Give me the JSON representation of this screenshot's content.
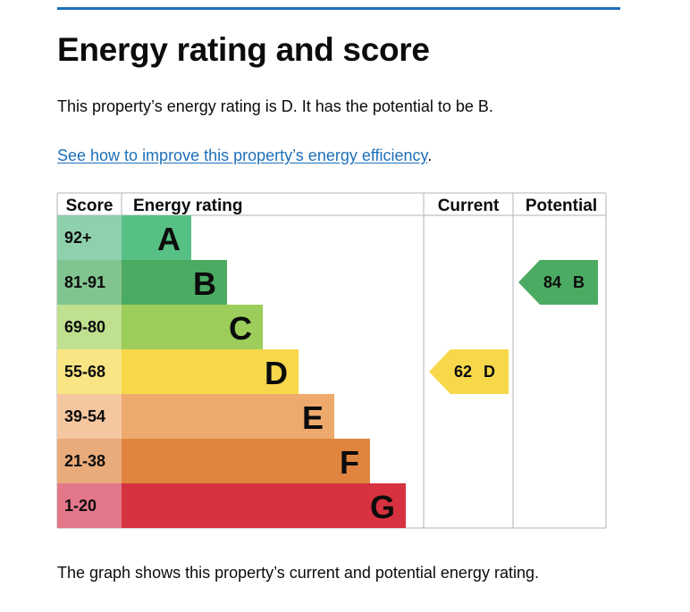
{
  "heading": "Energy rating and score",
  "summary": "This property’s energy rating is D. It has the potential to be B.",
  "link": {
    "text": "See how to improve this property’s energy efficiency",
    "trailing": "."
  },
  "footer": "The graph shows this property’s current and potential energy rating.",
  "colors": {
    "link": "#1d70b8",
    "rule": "#1d70b8"
  },
  "chart_data": {
    "type": "bar",
    "headers": {
      "score": "Score",
      "rating": "Energy rating",
      "current": "Current",
      "potential": "Potential"
    },
    "bands": [
      {
        "letter": "A",
        "range": "92+",
        "order": 1,
        "color": "#57c084",
        "score_bg": "#8fd0ad"
      },
      {
        "letter": "B",
        "range": "81-91",
        "order": 2,
        "color": "#4cab62",
        "score_bg": "#82c48f"
      },
      {
        "letter": "C",
        "range": "69-80",
        "order": 3,
        "color": "#9ccd5a",
        "score_bg": "#bfe08f"
      },
      {
        "letter": "D",
        "range": "55-68",
        "order": 4,
        "color": "#f7d84a",
        "score_bg": "#f9e583"
      },
      {
        "letter": "E",
        "range": "39-54",
        "order": 5,
        "color": "#eeaa6d",
        "score_bg": "#f5c7a0"
      },
      {
        "letter": "F",
        "range": "21-38",
        "order": 6,
        "color": "#e0853f",
        "score_bg": "#e9ab7a"
      },
      {
        "letter": "G",
        "range": "1-20",
        "order": 7,
        "color": "#d7323f",
        "score_bg": "#e2788a"
      }
    ],
    "current": {
      "score": 62,
      "band": "D",
      "label": "62",
      "letter": "D",
      "color": "#f7d84a"
    },
    "potential": {
      "score": 84,
      "band": "B",
      "label": "84",
      "letter": "B",
      "color": "#4cab62"
    }
  }
}
